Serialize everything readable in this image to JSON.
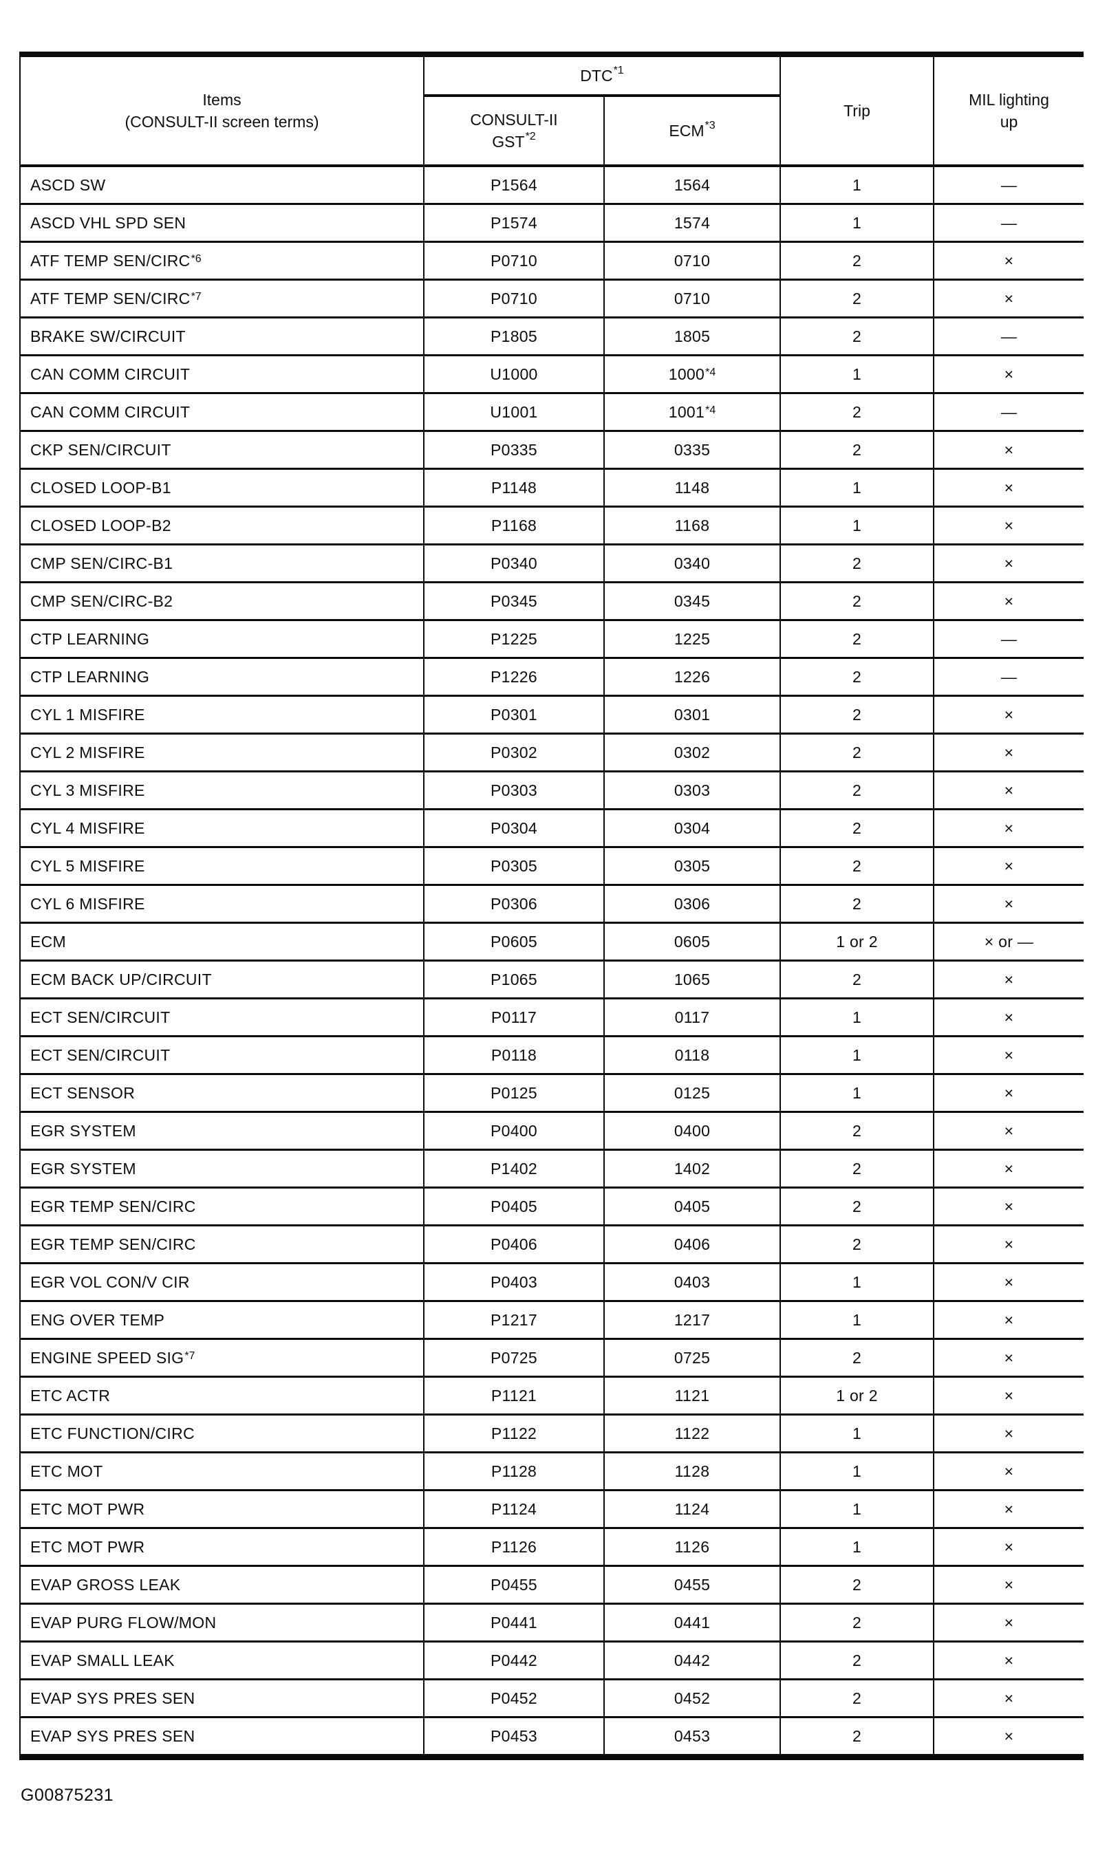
{
  "page": {
    "figure_code": "G00875231"
  },
  "table": {
    "header": {
      "items_line1": "Items",
      "items_line2": "(CONSULT-II screen terms)",
      "dtc_text": "DTC",
      "dtc_sup": "*1",
      "gst_line1": "CONSULT-II",
      "gst_line2_text": "GST",
      "gst_line2_sup": "*2",
      "ecm_text": "ECM",
      "ecm_sup": "*3",
      "trip_label": "Trip",
      "mil_line1": "MIL lighting",
      "mil_line2": "up"
    },
    "rows": [
      {
        "item": "ASCD SW",
        "gst": "P1564",
        "ecm": "1564",
        "trip": "1",
        "mil": "—"
      },
      {
        "item": "ASCD VHL SPD SEN",
        "gst": "P1574",
        "ecm": "1574",
        "trip": "1",
        "mil": "—"
      },
      {
        "item": {
          "text": "ATF TEMP SEN/CIRC",
          "sup": "*6"
        },
        "gst": "P0710",
        "ecm": "0710",
        "trip": "2",
        "mil": "×"
      },
      {
        "item": {
          "text": "ATF TEMP SEN/CIRC",
          "sup": "*7"
        },
        "gst": "P0710",
        "ecm": "0710",
        "trip": "2",
        "mil": "×"
      },
      {
        "item": "BRAKE SW/CIRCUIT",
        "gst": "P1805",
        "ecm": "1805",
        "trip": "2",
        "mil": "—"
      },
      {
        "item": "CAN COMM CIRCUIT",
        "gst": "U1000",
        "ecm": {
          "text": "1000",
          "sup": "*4"
        },
        "trip": "1",
        "mil": "×"
      },
      {
        "item": "CAN COMM CIRCUIT",
        "gst": "U1001",
        "ecm": {
          "text": "1001",
          "sup": "*4"
        },
        "trip": "2",
        "mil": "—"
      },
      {
        "item": "CKP SEN/CIRCUIT",
        "gst": "P0335",
        "ecm": "0335",
        "trip": "2",
        "mil": "×"
      },
      {
        "item": "CLOSED LOOP-B1",
        "gst": "P1148",
        "ecm": "1148",
        "trip": "1",
        "mil": "×"
      },
      {
        "item": "CLOSED LOOP-B2",
        "gst": "P1168",
        "ecm": "1168",
        "trip": "1",
        "mil": "×"
      },
      {
        "item": "CMP SEN/CIRC-B1",
        "gst": "P0340",
        "ecm": "0340",
        "trip": "2",
        "mil": "×"
      },
      {
        "item": "CMP SEN/CIRC-B2",
        "gst": "P0345",
        "ecm": "0345",
        "trip": "2",
        "mil": "×"
      },
      {
        "item": "CTP LEARNING",
        "gst": "P1225",
        "ecm": "1225",
        "trip": "2",
        "mil": "—"
      },
      {
        "item": "CTP LEARNING",
        "gst": "P1226",
        "ecm": "1226",
        "trip": "2",
        "mil": "—"
      },
      {
        "item": "CYL 1 MISFIRE",
        "gst": "P0301",
        "ecm": "0301",
        "trip": "2",
        "mil": "×"
      },
      {
        "item": "CYL 2 MISFIRE",
        "gst": "P0302",
        "ecm": "0302",
        "trip": "2",
        "mil": "×"
      },
      {
        "item": "CYL 3 MISFIRE",
        "gst": "P0303",
        "ecm": "0303",
        "trip": "2",
        "mil": "×"
      },
      {
        "item": "CYL 4 MISFIRE",
        "gst": "P0304",
        "ecm": "0304",
        "trip": "2",
        "mil": "×"
      },
      {
        "item": "CYL 5 MISFIRE",
        "gst": "P0305",
        "ecm": "0305",
        "trip": "2",
        "mil": "×"
      },
      {
        "item": "CYL 6 MISFIRE",
        "gst": "P0306",
        "ecm": "0306",
        "trip": "2",
        "mil": "×"
      },
      {
        "item": "ECM",
        "gst": "P0605",
        "ecm": "0605",
        "trip": "1 or 2",
        "mil": "× or —"
      },
      {
        "item": "ECM BACK UP/CIRCUIT",
        "gst": "P1065",
        "ecm": "1065",
        "trip": "2",
        "mil": "×"
      },
      {
        "item": "ECT SEN/CIRCUIT",
        "gst": "P0117",
        "ecm": "0117",
        "trip": "1",
        "mil": "×"
      },
      {
        "item": "ECT SEN/CIRCUIT",
        "gst": "P0118",
        "ecm": "0118",
        "trip": "1",
        "mil": "×"
      },
      {
        "item": "ECT SENSOR",
        "gst": "P0125",
        "ecm": "0125",
        "trip": "1",
        "mil": "×"
      },
      {
        "item": "EGR SYSTEM",
        "gst": "P0400",
        "ecm": "0400",
        "trip": "2",
        "mil": "×"
      },
      {
        "item": "EGR SYSTEM",
        "gst": "P1402",
        "ecm": "1402",
        "trip": "2",
        "mil": "×"
      },
      {
        "item": "EGR TEMP SEN/CIRC",
        "gst": "P0405",
        "ecm": "0405",
        "trip": "2",
        "mil": "×"
      },
      {
        "item": "EGR TEMP SEN/CIRC",
        "gst": "P0406",
        "ecm": "0406",
        "trip": "2",
        "mil": "×"
      },
      {
        "item": "EGR VOL CON/V CIR",
        "gst": "P0403",
        "ecm": "0403",
        "trip": "1",
        "mil": "×"
      },
      {
        "item": "ENG OVER TEMP",
        "gst": "P1217",
        "ecm": "1217",
        "trip": "1",
        "mil": "×"
      },
      {
        "item": {
          "text": "ENGINE SPEED SIG",
          "sup": "*7"
        },
        "gst": "P0725",
        "ecm": "0725",
        "trip": "2",
        "mil": "×"
      },
      {
        "item": "ETC ACTR",
        "gst": "P1121",
        "ecm": "1121",
        "trip": "1 or 2",
        "mil": "×"
      },
      {
        "item": "ETC FUNCTION/CIRC",
        "gst": "P1122",
        "ecm": "1122",
        "trip": "1",
        "mil": "×"
      },
      {
        "item": "ETC MOT",
        "gst": "P1128",
        "ecm": "1128",
        "trip": "1",
        "mil": "×"
      },
      {
        "item": "ETC MOT PWR",
        "gst": "P1124",
        "ecm": "1124",
        "trip": "1",
        "mil": "×"
      },
      {
        "item": "ETC MOT PWR",
        "gst": "P1126",
        "ecm": "1126",
        "trip": "1",
        "mil": "×"
      },
      {
        "item": "EVAP GROSS LEAK",
        "gst": "P0455",
        "ecm": "0455",
        "trip": "2",
        "mil": "×"
      },
      {
        "item": "EVAP PURG FLOW/MON",
        "gst": "P0441",
        "ecm": "0441",
        "trip": "2",
        "mil": "×"
      },
      {
        "item": "EVAP SMALL LEAK",
        "gst": "P0442",
        "ecm": "0442",
        "trip": "2",
        "mil": "×"
      },
      {
        "item": "EVAP SYS PRES SEN",
        "gst": "P0452",
        "ecm": "0452",
        "trip": "2",
        "mil": "×"
      },
      {
        "item": "EVAP SYS PRES SEN",
        "gst": "P0453",
        "ecm": "0453",
        "trip": "2",
        "mil": "×"
      }
    ]
  }
}
